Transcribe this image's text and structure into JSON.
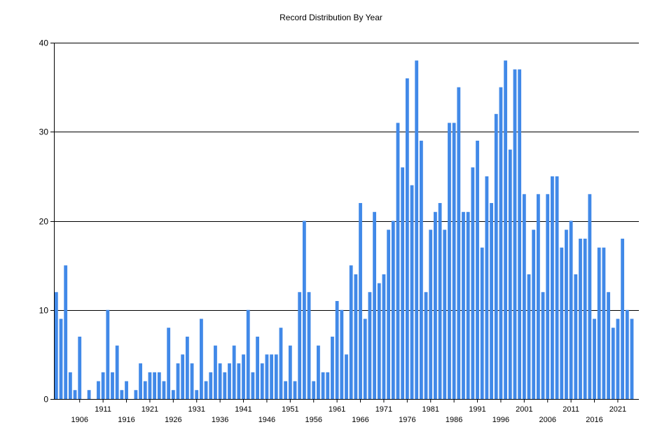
{
  "chart_data": {
    "type": "bar",
    "title": "Record Distribution By Year",
    "xlabel": "",
    "ylabel": "",
    "ylim": [
      0,
      40
    ],
    "yticks": [
      0,
      10,
      20,
      30,
      40
    ],
    "grid": true,
    "legend": "none",
    "bar_color": "#4189E8",
    "grid_color": "#000000",
    "x_label_rows": {
      "upper": [
        "1911",
        "1921",
        "1931",
        "1941",
        "1951",
        "1961",
        "1971",
        "1981",
        "1991",
        "2001",
        "2011",
        "2021"
      ],
      "lower": [
        "1906",
        "1916",
        "1926",
        "1936",
        "1946",
        "1956",
        "1966",
        "1976",
        "1986",
        "1996",
        "2006",
        "2016"
      ]
    },
    "categories": [
      "1901",
      "1902",
      "1903",
      "1904",
      "1905",
      "1906",
      "1907",
      "1908",
      "1909",
      "1910",
      "1911",
      "1912",
      "1913",
      "1914",
      "1915",
      "1916",
      "1917",
      "1918",
      "1919",
      "1920",
      "1921",
      "1922",
      "1923",
      "1924",
      "1925",
      "1926",
      "1927",
      "1928",
      "1929",
      "1930",
      "1931",
      "1932",
      "1933",
      "1934",
      "1935",
      "1936",
      "1937",
      "1938",
      "1939",
      "1940",
      "1941",
      "1942",
      "1943",
      "1944",
      "1945",
      "1946",
      "1947",
      "1948",
      "1949",
      "1950",
      "1951",
      "1952",
      "1953",
      "1954",
      "1955",
      "1956",
      "1957",
      "1958",
      "1959",
      "1960",
      "1961",
      "1962",
      "1963",
      "1964",
      "1965",
      "1966",
      "1967",
      "1968",
      "1969",
      "1970",
      "1971",
      "1972",
      "1973",
      "1974",
      "1975",
      "1976",
      "1977",
      "1978",
      "1979",
      "1980",
      "1981",
      "1982",
      "1983",
      "1984",
      "1985",
      "1986",
      "1987",
      "1988",
      "1989",
      "1990",
      "1991",
      "1992",
      "1993",
      "1994",
      "1995",
      "1996",
      "1997",
      "1998",
      "1999",
      "2000",
      "2001",
      "2002",
      "2003",
      "2004",
      "2005",
      "2006",
      "2007",
      "2008",
      "2009",
      "2010",
      "2011",
      "2012",
      "2013",
      "2014",
      "2015",
      "2016",
      "2017",
      "2018",
      "2019",
      "2020",
      "2021",
      "2022",
      "2023",
      "2024",
      "2025"
    ],
    "values": [
      12,
      9,
      15,
      3,
      1,
      7,
      0,
      1,
      0,
      2,
      3,
      10,
      3,
      6,
      1,
      2,
      0,
      1,
      4,
      2,
      3,
      3,
      3,
      2,
      8,
      1,
      4,
      5,
      7,
      4,
      1,
      9,
      2,
      3,
      6,
      4,
      3,
      4,
      6,
      4,
      5,
      10,
      3,
      7,
      4,
      5,
      5,
      5,
      8,
      2,
      6,
      2,
      12,
      20,
      12,
      2,
      6,
      3,
      3,
      7,
      11,
      10,
      5,
      15,
      14,
      22,
      9,
      12,
      21,
      13,
      14,
      19,
      20,
      31,
      26,
      36,
      24,
      38,
      29,
      12,
      19,
      21,
      22,
      19,
      31,
      31,
      35,
      21,
      21,
      26,
      29,
      17,
      25,
      22,
      32,
      35,
      38,
      28,
      37,
      37,
      23,
      14,
      19,
      23,
      12,
      23,
      25,
      25,
      17,
      19,
      20,
      14,
      18,
      18,
      23,
      9,
      17,
      17,
      12,
      8,
      9,
      18,
      10,
      9,
      0
    ]
  }
}
